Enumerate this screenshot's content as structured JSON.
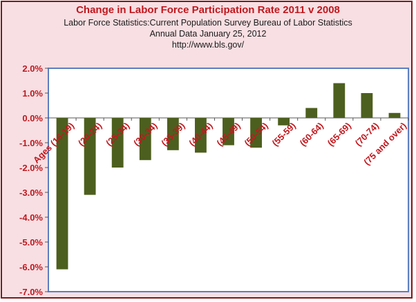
{
  "chart_data": {
    "type": "bar",
    "title": "Change in Labor Force Participation Rate 2011 v 2008",
    "subtitle_lines": [
      "Labor Force Statistics:Current Population Survey Bureau of Labor Statistics",
      "Annual Data January 25, 2012",
      "http://www.bls.gov/"
    ],
    "categories": [
      "Ages (16-19)",
      "(20-24)",
      "(25-34)",
      "(30-34)",
      "(35-39)",
      "(40-44)",
      "(45-49)",
      "(50-54)",
      "(55-59)",
      "(60-64)",
      "(65-69)",
      "(70-74)",
      "(75 and over)"
    ],
    "values": [
      -6.1,
      -3.1,
      -2.0,
      -1.7,
      -1.3,
      -1.4,
      -1.1,
      -1.2,
      -0.3,
      0.4,
      1.4,
      1.0,
      0.2
    ],
    "ylim": [
      -7.0,
      2.0
    ],
    "y_ticks": [
      "2.0%",
      "1.0%",
      "0.0%",
      "-1.0%",
      "-2.0%",
      "-3.0%",
      "-4.0%",
      "-5.0%",
      "-6.0%",
      "-7.0%"
    ],
    "xlabel": "",
    "ylabel": "",
    "grid": false,
    "colors": {
      "bar": "#4d5f1e",
      "plot_border": "#5b7ec2",
      "title": "#c0181e",
      "tick_labels": "#c0181e",
      "background": "#f7dfe3",
      "frame": "#7a1a1a"
    }
  }
}
